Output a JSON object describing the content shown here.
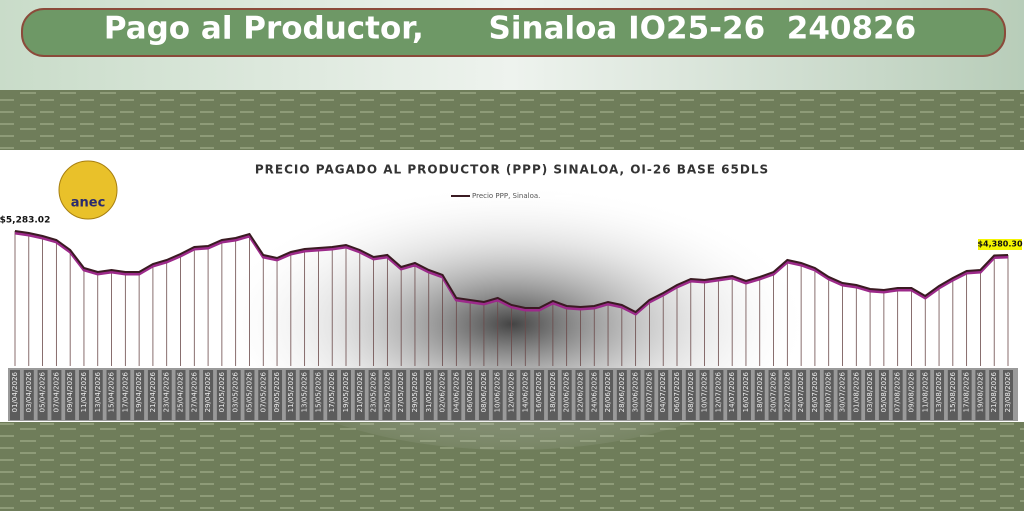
{
  "header": {
    "title": "Pago al Productor,      Sinaloa IO25-26  240826"
  },
  "logo_text": "anec",
  "chart_data": {
    "type": "line",
    "title": "PRECIO PAGADO AL PRODUCTOR (PPP) SINALOA, OI-26 BASE 65DLS",
    "categories": [
      "01/04/2026",
      "03/04/2026",
      "05/04/2026",
      "07/04/2026",
      "09/04/2026",
      "11/04/2026",
      "13/04/2026",
      "15/04/2026",
      "17/04/2026",
      "19/04/2026",
      "21/04/2026",
      "23/04/2026",
      "25/04/2026",
      "27/04/2026",
      "29/04/2026",
      "01/05/2026",
      "03/05/2026",
      "05/05/2026",
      "07/05/2026",
      "09/05/2026",
      "11/05/2026",
      "13/05/2026",
      "15/05/2026",
      "17/05/2026",
      "19/05/2026",
      "21/05/2026",
      "23/05/2026",
      "25/05/2026",
      "27/05/2026",
      "29/05/2026",
      "31/05/2026",
      "02/06/2026",
      "04/06/2026",
      "06/06/2026",
      "08/06/2026",
      "10/06/2026",
      "12/06/2026",
      "14/06/2026",
      "16/06/2026",
      "18/06/2026",
      "20/06/2026",
      "22/06/2026",
      "24/06/2026",
      "26/06/2026",
      "28/06/2026",
      "30/06/2026",
      "02/07/2026",
      "04/07/2026",
      "06/07/2026",
      "08/07/2026",
      "10/07/2026",
      "12/07/2026",
      "14/07/2026",
      "16/07/2026",
      "18/07/2026",
      "20/07/2026",
      "22/07/2026",
      "24/07/2026",
      "26/07/2026",
      "28/07/2026",
      "30/07/2026",
      "01/08/2026",
      "03/08/2026",
      "05/08/2026",
      "07/08/2026",
      "09/08/2026",
      "11/08/2026",
      "13/08/2026",
      "15/08/2026",
      "17/08/2026",
      "19/08/2026",
      "21/08/2026",
      "23/08/2026"
    ],
    "series": [
      {
        "name": "Precio PPP, Sinaloa.",
        "color": "#3a1a22",
        "values": [
          5283.02,
          5208,
          5095,
          4945,
          4569,
          3892,
          3741,
          3817,
          3741,
          3741,
          4042,
          4193,
          4418,
          4681,
          4719,
          4945,
          5020,
          5170,
          4381,
          4268,
          4493,
          4606,
          4644,
          4681,
          4757,
          4569,
          4305,
          4381,
          3929,
          4080,
          3817,
          3629,
          2764,
          2689,
          2614,
          2764,
          2501,
          2388,
          2388,
          2651,
          2463,
          2425,
          2463,
          2614,
          2501,
          2237,
          2689,
          2952,
          3253,
          3478,
          3441,
          3516,
          3591,
          3403,
          3554,
          3741,
          4193,
          4080,
          3892,
          3554,
          3328,
          3253,
          3102,
          3065,
          3140,
          3140,
          2839,
          3215,
          3516,
          3779,
          3817,
          4360,
          4380.3
        ],
        "value_labels": [
          "$5,283.02",
          null,
          null,
          null,
          null,
          null,
          null,
          null,
          null,
          null,
          null,
          null,
          null,
          null,
          null,
          null,
          null,
          null,
          null,
          null,
          null,
          null,
          null,
          null,
          null,
          null,
          null,
          null,
          null,
          null,
          null,
          null,
          null,
          null,
          null,
          null,
          null,
          null,
          null,
          null,
          null,
          null,
          null,
          null,
          null,
          null,
          null,
          null,
          null,
          null,
          null,
          null,
          null,
          null,
          null,
          null,
          null,
          null,
          null,
          null,
          null,
          null,
          null,
          null,
          null,
          null,
          null,
          null,
          null,
          null,
          null,
          null,
          "$4,380.30"
        ]
      }
    ]
  }
}
